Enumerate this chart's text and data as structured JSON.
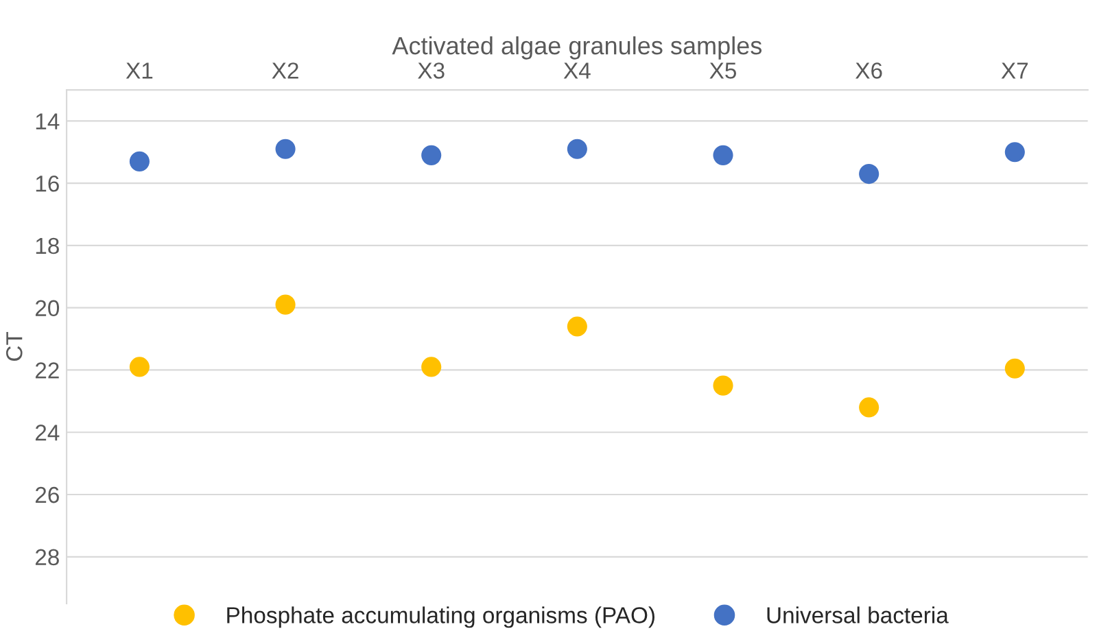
{
  "chart_data": {
    "type": "scatter",
    "xlabel": "Activated algae granules samples",
    "ylabel": "CT",
    "categories": [
      "X1",
      "X2",
      "X3",
      "X4",
      "X5",
      "X6",
      "X7"
    ],
    "series": [
      {
        "name": "Phosphate accumulating organisms (PAO)",
        "color": "#ffc000",
        "values": [
          21.9,
          19.9,
          21.9,
          20.6,
          22.5,
          23.2,
          21.95
        ]
      },
      {
        "name": "Universal bacteria",
        "color": "#4472c4",
        "values": [
          15.3,
          14.9,
          15.1,
          14.9,
          15.1,
          15.7,
          15.0
        ]
      }
    ],
    "ylim": [
      29.5,
      13
    ],
    "yticks": [
      14,
      16,
      18,
      20,
      22,
      24,
      26,
      28
    ],
    "grid": "y",
    "legend": "bottom",
    "marker": "circle"
  }
}
